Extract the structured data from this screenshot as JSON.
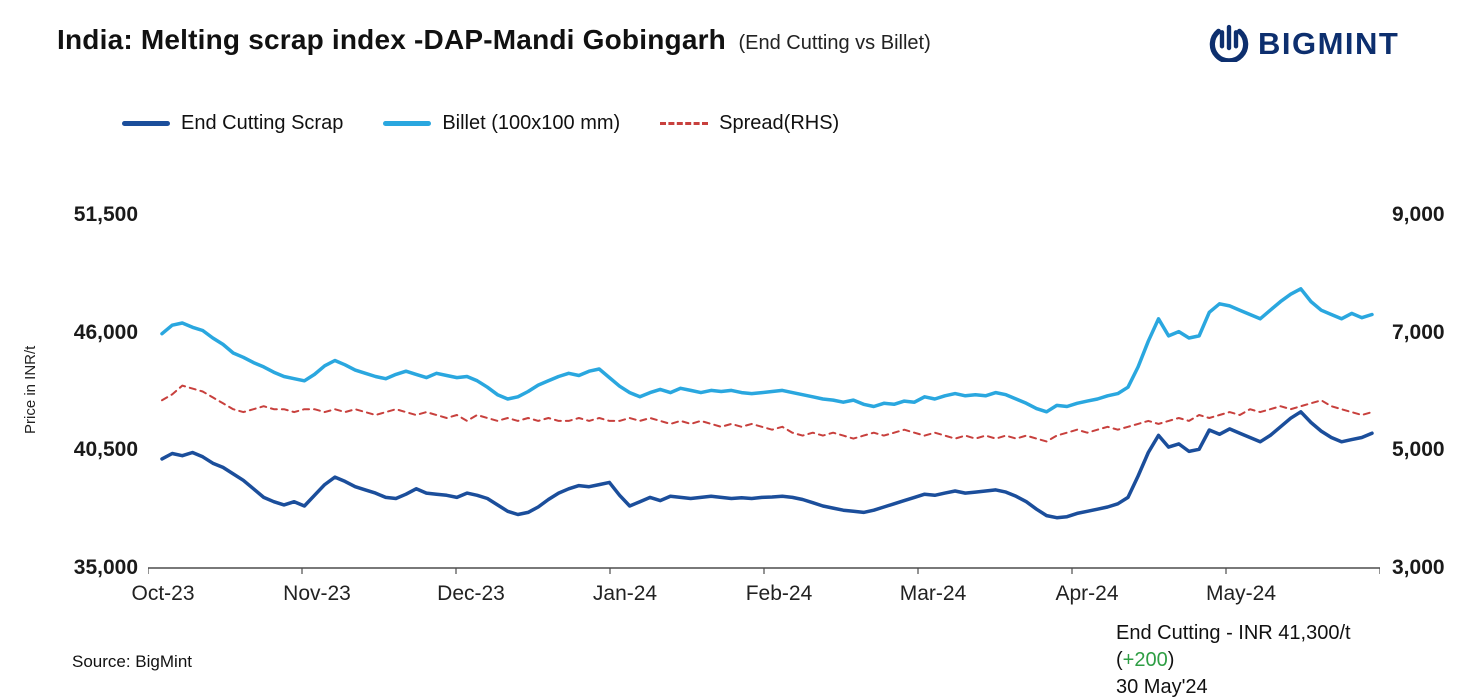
{
  "header": {
    "title": "India: Melting scrap index -DAP-Mandi Gobingarh",
    "subtitle": "(End Cutting vs Billet)",
    "brand": "BIGMINT"
  },
  "footer": {
    "source": "Source: BigMint",
    "annotation_prefix": "End Cutting - INR 41,300/t (",
    "annotation_change": "+200",
    "annotation_suffix": ")",
    "annotation_date": "30 May'24"
  },
  "colors": {
    "end_cutting": "#1b4e9b",
    "billet": "#2aa7df",
    "spread": "#c8403d",
    "brand_navy": "#0d2f6e",
    "positive_green": "#2e9e44"
  },
  "chart_data": {
    "type": "line",
    "title": "India: Melting scrap index -DAP-Mandi Gobingarh (End Cutting vs Billet)",
    "ylabel_left": "Price in INR/t",
    "left_ylim": [
      35000,
      51500
    ],
    "right_ylim": [
      3000,
      9000
    ],
    "left_ticks": [
      "51,500",
      "46,000",
      "40,500",
      "35,000"
    ],
    "right_ticks": [
      "9,000",
      "7,000",
      "5,000",
      "3,000"
    ],
    "x_labels": [
      "Oct-23",
      "Nov-23",
      "Dec-23",
      "Jan-24",
      "Feb-24",
      "Mar-24",
      "Apr-24",
      "May-24"
    ],
    "legend_position": "top",
    "grid": false,
    "series": [
      {
        "name": "End Cutting Scrap",
        "axis": "left",
        "color": "#1b4e9b",
        "dash": null,
        "width": 3.5,
        "values": [
          40100,
          40350,
          40250,
          40400,
          40200,
          39900,
          39700,
          39400,
          39100,
          38700,
          38300,
          38100,
          37950,
          38100,
          37900,
          38400,
          38900,
          39250,
          39050,
          38800,
          38650,
          38500,
          38300,
          38250,
          38450,
          38700,
          38500,
          38450,
          38400,
          38300,
          38500,
          38400,
          38250,
          37950,
          37650,
          37500,
          37600,
          37850,
          38200,
          38500,
          38700,
          38850,
          38800,
          38900,
          39000,
          38400,
          37900,
          38100,
          38300,
          38150,
          38350,
          38300,
          38250,
          38300,
          38350,
          38300,
          38250,
          38280,
          38250,
          38300,
          38320,
          38350,
          38300,
          38200,
          38050,
          37900,
          37800,
          37700,
          37650,
          37600,
          37700,
          37850,
          38000,
          38150,
          38300,
          38450,
          38400,
          38500,
          38600,
          38500,
          38550,
          38600,
          38650,
          38550,
          38350,
          38100,
          37750,
          37450,
          37350,
          37400,
          37550,
          37650,
          37750,
          37850,
          38000,
          38300,
          39300,
          40400,
          41200,
          40650,
          40800,
          40450,
          40550,
          41450,
          41250,
          41500,
          41300,
          41100,
          40900,
          41200,
          41600,
          42000,
          42300,
          41800,
          41400,
          41100,
          40900,
          41000,
          41100,
          41300
        ]
      },
      {
        "name": "Billet (100x100 mm)",
        "axis": "left",
        "color": "#2aa7df",
        "dash": null,
        "width": 3.5,
        "values": [
          45950,
          46350,
          46450,
          46250,
          46100,
          45750,
          45450,
          45050,
          44850,
          44600,
          44400,
          44150,
          43950,
          43850,
          43750,
          44050,
          44450,
          44700,
          44500,
          44250,
          44100,
          43950,
          43850,
          44050,
          44200,
          44050,
          43900,
          44100,
          44000,
          43900,
          43950,
          43750,
          43450,
          43100,
          42900,
          43000,
          43250,
          43550,
          43750,
          43950,
          44100,
          44000,
          44200,
          44300,
          43900,
          43500,
          43200,
          43000,
          43200,
          43350,
          43200,
          43400,
          43300,
          43200,
          43300,
          43250,
          43300,
          43200,
          43150,
          43200,
          43250,
          43300,
          43200,
          43100,
          43000,
          42900,
          42850,
          42750,
          42850,
          42650,
          42550,
          42700,
          42650,
          42800,
          42750,
          43000,
          42900,
          43050,
          43150,
          43050,
          43100,
          43050,
          43200,
          43100,
          42900,
          42700,
          42450,
          42300,
          42600,
          42550,
          42700,
          42800,
          42900,
          43050,
          43150,
          43450,
          44400,
          45600,
          46650,
          45850,
          46050,
          45750,
          45850,
          46950,
          47350,
          47250,
          47050,
          46850,
          46650,
          47050,
          47450,
          47800,
          48050,
          47450,
          47050,
          46850,
          46650,
          46900,
          46700,
          46850
        ]
      },
      {
        "name": "Spread(RHS)",
        "axis": "right",
        "color": "#c8403d",
        "dash": "6,5",
        "width": 2,
        "values": [
          5850,
          5950,
          6100,
          6050,
          6000,
          5900,
          5800,
          5700,
          5650,
          5700,
          5750,
          5700,
          5700,
          5650,
          5700,
          5700,
          5650,
          5700,
          5650,
          5700,
          5650,
          5600,
          5650,
          5700,
          5650,
          5600,
          5650,
          5600,
          5550,
          5600,
          5500,
          5600,
          5550,
          5500,
          5550,
          5500,
          5550,
          5500,
          5550,
          5500,
          5500,
          5550,
          5500,
          5550,
          5500,
          5500,
          5550,
          5500,
          5550,
          5500,
          5450,
          5500,
          5450,
          5500,
          5450,
          5400,
          5450,
          5400,
          5450,
          5400,
          5350,
          5400,
          5300,
          5250,
          5300,
          5250,
          5300,
          5250,
          5200,
          5250,
          5300,
          5250,
          5300,
          5350,
          5300,
          5250,
          5300,
          5250,
          5200,
          5250,
          5200,
          5250,
          5200,
          5250,
          5200,
          5250,
          5200,
          5150,
          5250,
          5300,
          5350,
          5300,
          5350,
          5400,
          5350,
          5400,
          5450,
          5500,
          5450,
          5500,
          5550,
          5500,
          5600,
          5550,
          5600,
          5650,
          5600,
          5700,
          5650,
          5700,
          5750,
          5700,
          5750,
          5800,
          5850,
          5750,
          5700,
          5650,
          5600,
          5650
        ]
      }
    ]
  }
}
